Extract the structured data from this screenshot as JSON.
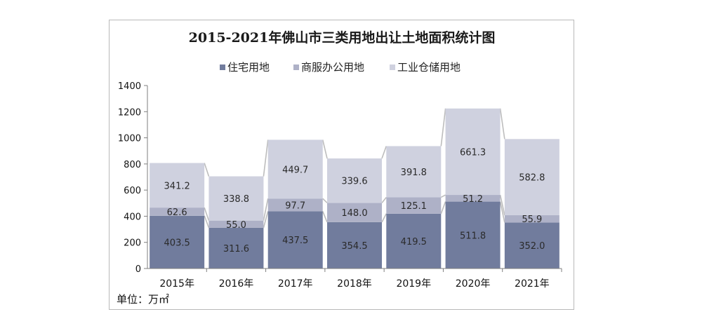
{
  "chart_data": {
    "type": "bar",
    "stacked": true,
    "title": "2015-2021年佛山市三类用地出让土地面积统计图",
    "unit_label": "单位：万㎡",
    "categories": [
      "2015年",
      "2016年",
      "2017年",
      "2018年",
      "2019年",
      "2020年",
      "2021年"
    ],
    "series": [
      {
        "name": "住宅用地",
        "color": "#717c9d",
        "values": [
          403.5,
          311.6,
          437.5,
          354.5,
          419.5,
          511.8,
          352.0
        ]
      },
      {
        "name": "商服办公用地",
        "color": "#aeb1c7",
        "values": [
          62.6,
          55.0,
          97.7,
          148.0,
          125.1,
          51.2,
          55.9
        ]
      },
      {
        "name": "工业仓储用地",
        "color": "#cfd1df",
        "values": [
          341.2,
          338.8,
          449.7,
          339.6,
          391.8,
          661.3,
          582.8
        ]
      }
    ],
    "yticks": [
      "0",
      "200",
      "400",
      "600",
      "800",
      "1000",
      "1200",
      "1400"
    ],
    "ylim": [
      0,
      1400
    ],
    "legend_position": "top",
    "connector_lines": true,
    "grid": false
  }
}
